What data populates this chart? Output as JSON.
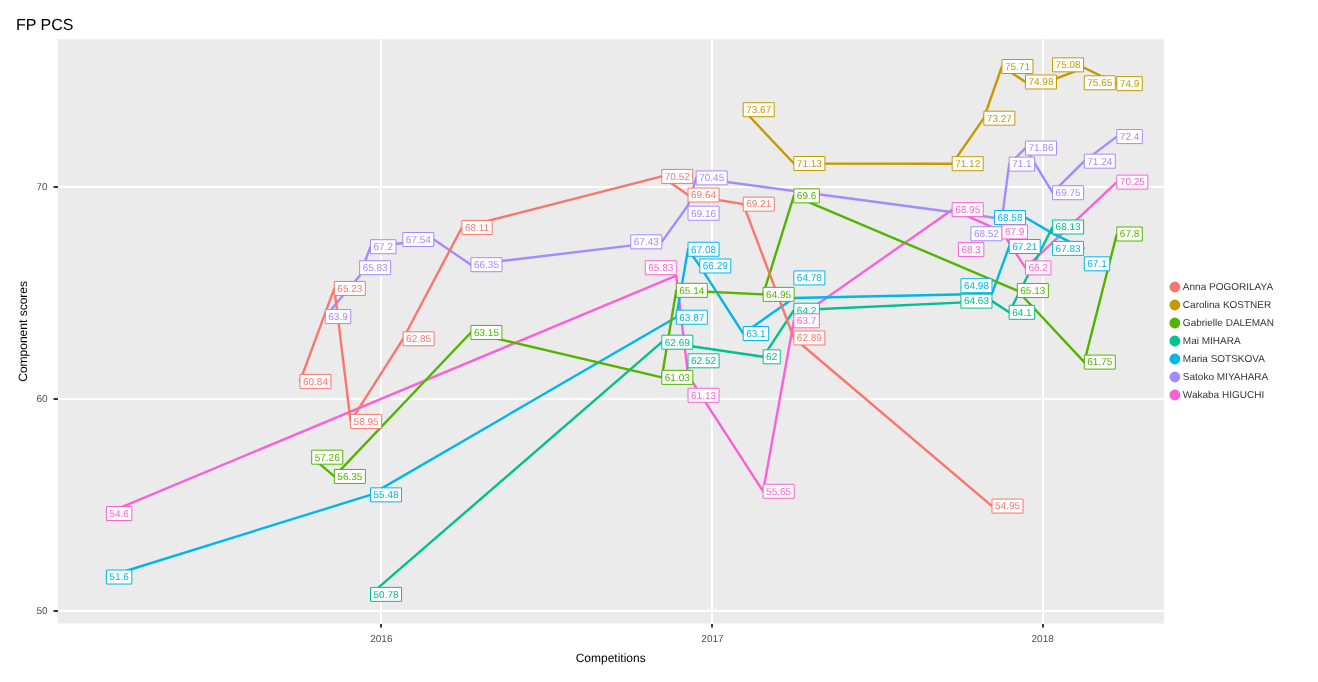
{
  "chart_data": {
    "type": "line",
    "title": "FP PCS",
    "xlabel": "Competitions",
    "ylabel": "Component scores",
    "xlim": [
      "2015-01-08",
      "2018-05-15"
    ],
    "xticks": [
      "2016",
      "2017",
      "2018"
    ],
    "ylim": [
      49.4,
      77
    ],
    "yticks": [
      50,
      60,
      70
    ],
    "grid": true,
    "legend": "right",
    "data_labels": true,
    "series": [
      {
        "name": "Anna POGORILAYA",
        "color": "#f8766d",
        "x": [
          "2015-10-03",
          "2015-11-10",
          "2015-11-28",
          "2016-01-25",
          "2016-03-30",
          "2016-11-06",
          "2016-12-05",
          "2017-02-04",
          "2017-04-01",
          "2017-11-06"
        ],
        "values": [
          60.84,
          65.23,
          58.95,
          62.85,
          68.11,
          70.52,
          69.64,
          69.21,
          62.89,
          54.95
        ]
      },
      {
        "name": "Carolina KOSTNER",
        "color": "#c49a00",
        "x": [
          "2017-02-04",
          "2017-04-01",
          "2017-09-23",
          "2017-10-28",
          "2017-11-17",
          "2017-12-13",
          "2018-01-12",
          "2018-02-16",
          "2018-03-24"
        ],
        "values": [
          73.67,
          71.13,
          71.12,
          73.27,
          75.71,
          74.98,
          75.08,
          75.65,
          74.9
        ]
      },
      {
        "name": "Gabrielle DALEMAN",
        "color": "#53b400",
        "x": [
          "2015-10-16",
          "2015-11-10",
          "2016-04-09",
          "2016-11-06",
          "2016-11-22",
          "2017-02-26",
          "2017-04-01",
          "2017-12-04",
          "2018-02-16",
          "2018-03-24"
        ],
        "values": [
          57.26,
          56.35,
          63.15,
          61.03,
          65.14,
          64.95,
          69.6,
          65.13,
          61.75,
          67.8
        ]
      },
      {
        "name": "Mai MIHARA",
        "color": "#00c094",
        "x": [
          "2015-12-20",
          "2016-11-06",
          "2016-12-05",
          "2017-02-26",
          "2017-04-01",
          "2017-11-06",
          "2017-11-25",
          "2018-01-12"
        ],
        "values": [
          50.78,
          62.69,
          62.52,
          62.0,
          64.2,
          64.63,
          64.1,
          68.13
        ]
      },
      {
        "name": "Maria SOTSKOVA",
        "color": "#00b6eb",
        "x": [
          "2015-03-03",
          "2015-12-20",
          "2016-11-22",
          "2016-12-05",
          "2016-12-18",
          "2017-02-04",
          "2017-04-01",
          "2017-11-06",
          "2017-11-25",
          "2017-12-13",
          "2018-01-12",
          "2018-02-16"
        ],
        "values": [
          51.6,
          55.48,
          63.87,
          67.08,
          66.29,
          63.1,
          64.78,
          64.98,
          67.21,
          68.58,
          67.83,
          67.1
        ]
      },
      {
        "name": "Satoko MIYAHARA",
        "color": "#a58aff",
        "x": [
          "2015-10-31",
          "2015-12-08",
          "2015-12-20",
          "2016-02-28",
          "2016-04-09",
          "2016-11-06",
          "2016-12-05",
          "2016-12-14",
          "2017-11-17",
          "2017-11-25",
          "2017-12-13",
          "2018-01-12",
          "2018-02-16",
          "2018-03-24"
        ],
        "values": [
          63.9,
          65.83,
          67.2,
          67.54,
          66.35,
          67.43,
          69.16,
          70.45,
          68.52,
          71.1,
          71.86,
          69.75,
          71.24,
          72.4
        ]
      },
      {
        "name": "Wakaba HIGUCHI",
        "color": "#fb61d7",
        "x": [
          "2015-03-03",
          "2016-11-22",
          "2016-12-05",
          "2017-02-26",
          "2017-04-01",
          "2017-09-23",
          "2017-10-28",
          "2017-11-17",
          "2017-12-13",
          "2018-03-24"
        ],
        "values": [
          54.6,
          65.83,
          61.13,
          55.65,
          63.7,
          68.95,
          68.3,
          67.9,
          66.2,
          70.25
        ]
      }
    ]
  }
}
